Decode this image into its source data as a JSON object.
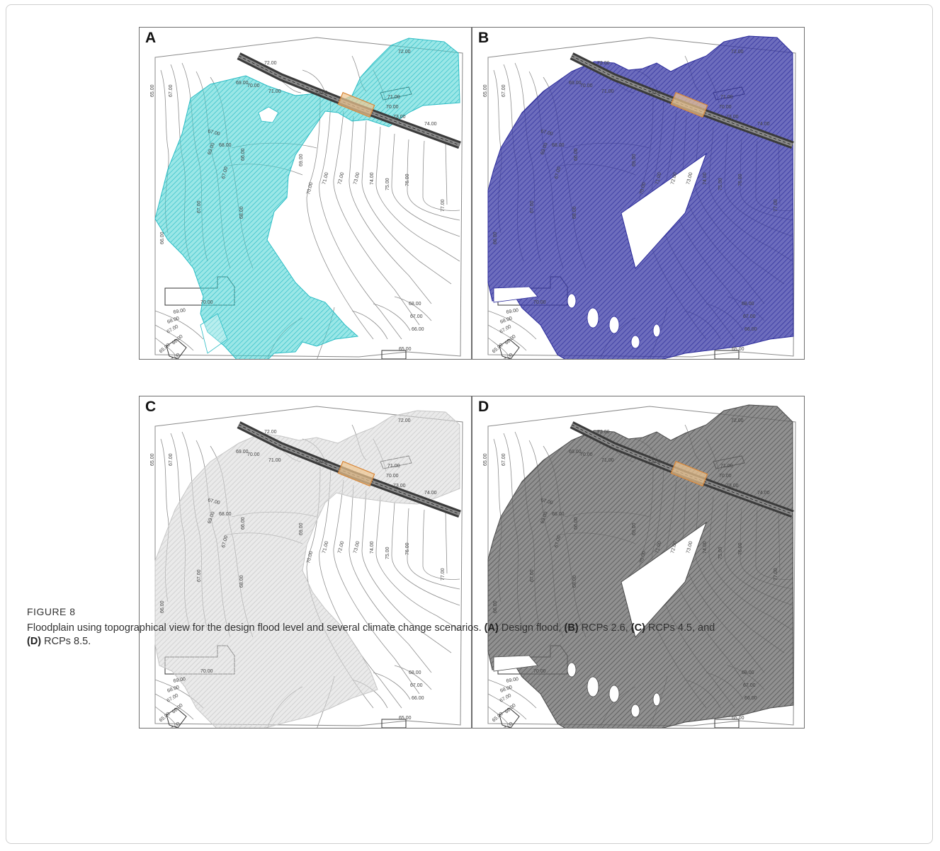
{
  "panels": [
    {
      "letter": "A",
      "fill": "#46d2d2",
      "stroke": "#2bbcc4",
      "opacity": 0.55,
      "variant": "A"
    },
    {
      "letter": "B",
      "fill": "#3c3ca6",
      "stroke": "#2b2b9a",
      "opacity": 0.75,
      "variant": "B"
    },
    {
      "letter": "C",
      "fill": "#d9d9d9",
      "stroke": "#c6c6c6",
      "opacity": 0.55,
      "variant": "C"
    },
    {
      "letter": "D",
      "fill": "#6a6a6a",
      "stroke": "#4a4a4a",
      "opacity": 0.75,
      "variant": "D"
    }
  ],
  "contour_labels": {
    "top": [
      "72.00",
      "72.00",
      "72.00",
      "71.00",
      "70.00",
      "71.00",
      "69.00"
    ],
    "left": [
      "65.00",
      "67.00",
      "67.00",
      "68.00",
      "67.00",
      "66.00",
      "69.00",
      "67.00",
      "68.00",
      "66.00"
    ],
    "middle": [
      "69.00",
      "70.00",
      "71.00",
      "72.00",
      "73.00",
      "74.00",
      "75.00",
      "76.00",
      "77.00"
    ],
    "right_block": [
      "73.00",
      "74.00",
      "70.00"
    ],
    "bottom_left": [
      "70.00",
      "69.00",
      "68.00",
      "67.00",
      "66.00",
      "65.00",
      "67.00"
    ],
    "bottom_right": [
      "68.00",
      "67.00",
      "66.00",
      "65.00"
    ],
    "bottom": [
      "67.00"
    ]
  },
  "caption": {
    "label": "FIGURE 8",
    "text_main": "Floodplain using topographical view for the design flood level and several climate change scenarios.",
    "a_tag": "(A)",
    "a_text": " Design flood, ",
    "b_tag": "(B)",
    "b_text": " RCPs 2.6, ",
    "c_tag": "(C)",
    "c_text": " RCPs 4.5, and",
    "d_tag": "(D)",
    "d_text": " RCPs 8.5."
  }
}
